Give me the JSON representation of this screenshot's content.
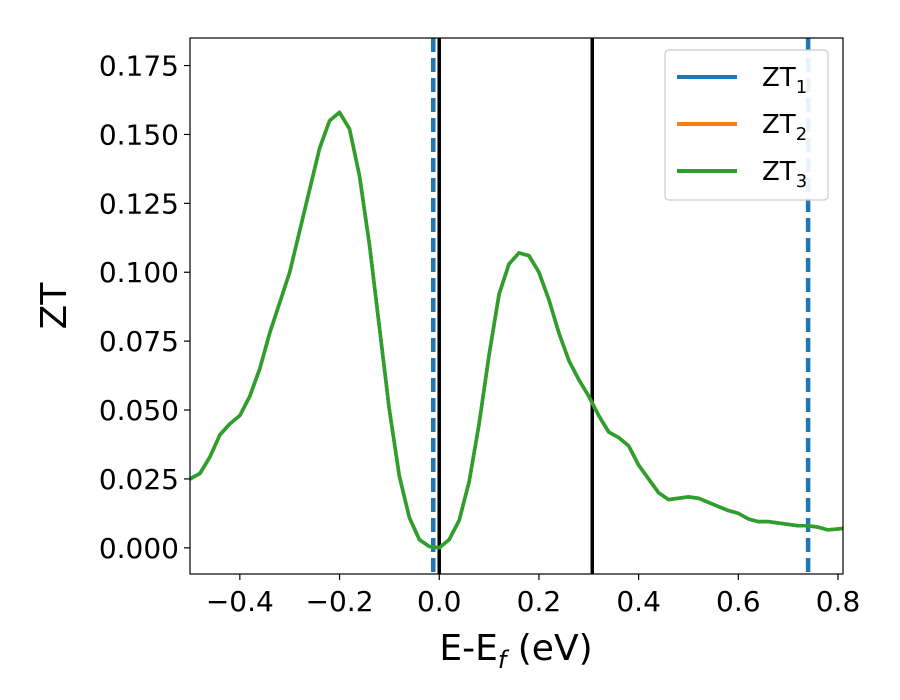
{
  "chart_data": {
    "type": "line",
    "xlabel": {
      "main": "E-E",
      "sub": "f",
      "tail": " (eV)"
    },
    "ylabel": "ZT",
    "xlim": [
      -0.5,
      0.81
    ],
    "ylim": [
      -0.0095,
      0.185
    ],
    "x_ticks": [
      -0.4,
      -0.2,
      0.0,
      0.2,
      0.4,
      0.6,
      0.8
    ],
    "x_tick_labels": [
      "−0.4",
      "−0.2",
      "0.0",
      "0.2",
      "0.4",
      "0.6",
      "0.8"
    ],
    "y_ticks": [
      0.0,
      0.025,
      0.05,
      0.075,
      0.1,
      0.125,
      0.15,
      0.175
    ],
    "y_tick_labels": [
      "0.000",
      "0.025",
      "0.050",
      "0.075",
      "0.100",
      "0.125",
      "0.150",
      "0.175"
    ],
    "grid": false,
    "legend_position": "top-right",
    "series": [
      {
        "name": "ZT",
        "sub": "1",
        "color": "#1f77b4"
      },
      {
        "name": "ZT",
        "sub": "2",
        "color": "#ff7f0e"
      },
      {
        "name": "ZT",
        "sub": "3",
        "color": "#2ca02c"
      }
    ],
    "shared_curve": {
      "x": [
        -0.5,
        -0.48,
        -0.46,
        -0.44,
        -0.42,
        -0.4,
        -0.38,
        -0.36,
        -0.34,
        -0.32,
        -0.3,
        -0.28,
        -0.26,
        -0.24,
        -0.22,
        -0.2,
        -0.18,
        -0.16,
        -0.14,
        -0.12,
        -0.1,
        -0.08,
        -0.06,
        -0.04,
        -0.02,
        0.0,
        0.02,
        0.04,
        0.06,
        0.08,
        0.1,
        0.12,
        0.14,
        0.16,
        0.18,
        0.2,
        0.22,
        0.24,
        0.26,
        0.28,
        0.3,
        0.32,
        0.34,
        0.36,
        0.38,
        0.4,
        0.42,
        0.44,
        0.46,
        0.48,
        0.5,
        0.52,
        0.54,
        0.56,
        0.58,
        0.6,
        0.62,
        0.64,
        0.66,
        0.68,
        0.7,
        0.72,
        0.74,
        0.76,
        0.78,
        0.81
      ],
      "y": [
        0.025,
        0.027,
        0.033,
        0.041,
        0.045,
        0.048,
        0.055,
        0.065,
        0.078,
        0.089,
        0.1,
        0.115,
        0.13,
        0.145,
        0.155,
        0.158,
        0.152,
        0.135,
        0.11,
        0.08,
        0.05,
        0.026,
        0.011,
        0.003,
        0.0005,
        0.0,
        0.003,
        0.01,
        0.024,
        0.045,
        0.07,
        0.092,
        0.103,
        0.107,
        0.106,
        0.1,
        0.09,
        0.078,
        0.068,
        0.061,
        0.055,
        0.048,
        0.042,
        0.04,
        0.037,
        0.03,
        0.025,
        0.02,
        0.0175,
        0.018,
        0.0185,
        0.018,
        0.0165,
        0.015,
        0.0135,
        0.0125,
        0.0105,
        0.0095,
        0.0095,
        0.009,
        0.0085,
        0.008,
        0.008,
        0.0075,
        0.0065,
        0.007
      ]
    },
    "vertical_lines": [
      {
        "x": -0.012,
        "color": "#1f77b4",
        "style": "dashed"
      },
      {
        "x": 0.0,
        "color": "#000000",
        "style": "solid"
      },
      {
        "x": 0.307,
        "color": "#000000",
        "style": "solid"
      },
      {
        "x": 0.74,
        "color": "#1f77b4",
        "style": "dashed"
      }
    ]
  }
}
